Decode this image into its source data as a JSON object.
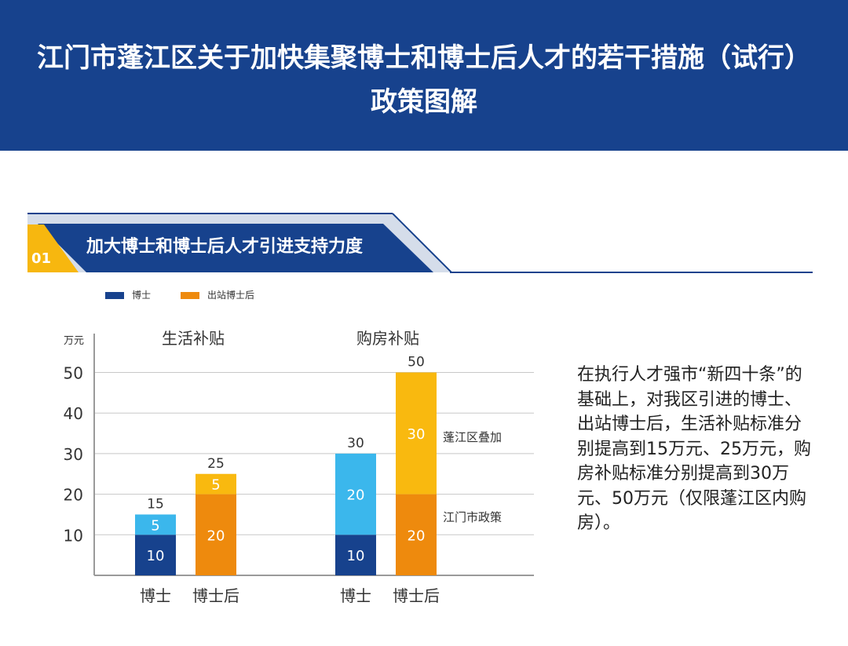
{
  "header": {
    "line1": "江门市蓬江区关于加快集聚博士和博士后人才的若干措施（试行）",
    "line2": "政策图解"
  },
  "section": {
    "number": "01",
    "title": "加大博士和博士后人才引进支持力度"
  },
  "colors": {
    "header_bg": "#17428d",
    "doctor_city": "#17428d",
    "doctor_district": "#3bb7ec",
    "postdoc_city": "#ee8a0d",
    "postdoc_district": "#f9b90f",
    "badge": "#f7b70f"
  },
  "legend": [
    {
      "label": "博士",
      "color": "#17428d"
    },
    {
      "label": "出站博士后",
      "color": "#ee8a0d"
    }
  ],
  "chart_data": {
    "type": "bar",
    "stacked": true,
    "ylabel": "万元",
    "ylim": [
      0,
      50
    ],
    "yticks": [
      10,
      20,
      30,
      40,
      50
    ],
    "grid": true,
    "groups": [
      {
        "title": "生活补贴",
        "categories": [
          "博士",
          "博士后"
        ],
        "bars": [
          {
            "category": "博士",
            "city": 10,
            "district": 5,
            "total": 15
          },
          {
            "category": "博士后",
            "city": 20,
            "district": 5,
            "total": 25
          }
        ]
      },
      {
        "title": "购房补贴",
        "categories": [
          "博士",
          "博士后"
        ],
        "bars": [
          {
            "category": "博士",
            "city": 10,
            "district": 20,
            "total": 30
          },
          {
            "category": "博士后",
            "city": 20,
            "district": 30,
            "total": 50
          }
        ]
      }
    ],
    "annotations": [
      {
        "text": "蓬江区叠加",
        "target": "district"
      },
      {
        "text": "江门市政策",
        "target": "city"
      }
    ]
  },
  "description": "在执行人才强市“新四十条”的基础上，对我区引进的博士、出站博士后，生活补贴标准分别提高到15万元、25万元，购房补贴标准分别提高到30万元、50万元（仅限蓬江区内购房）。"
}
